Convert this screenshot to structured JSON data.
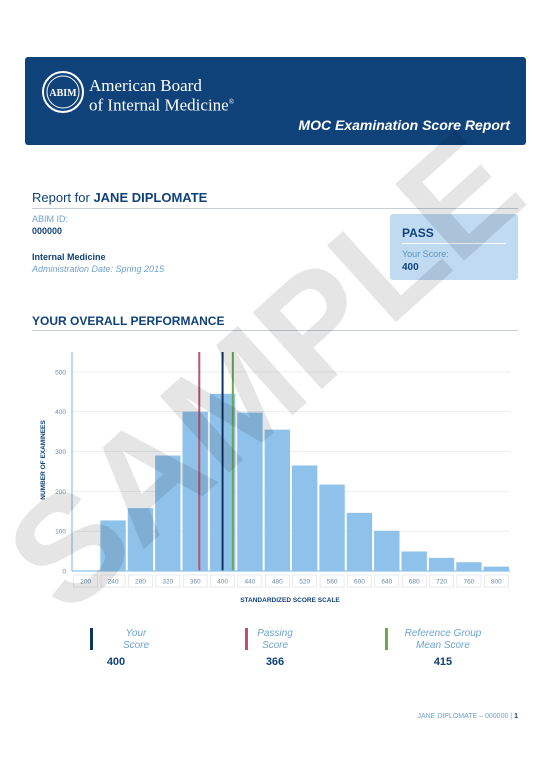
{
  "header": {
    "org_line1": "American Board",
    "org_line2": "of Internal Medicine",
    "org_mark": "®",
    "seal_text": "ABIM",
    "report_title": "MOC Examination Score Report"
  },
  "report": {
    "report_for_label": "Report for",
    "name": "JANE DIPLOMATE",
    "id_label": "ABIM ID:",
    "id_value": "000000",
    "specialty": "Internal Medicine",
    "admin_date": "Administration Date: Spring 2015"
  },
  "result": {
    "status": "PASS",
    "score_label": "Your Score:",
    "score_value": "400"
  },
  "section": {
    "title": "YOUR OVERALL PERFORMANCE"
  },
  "chart_data": {
    "type": "bar",
    "xlabel": "STANDARDIZED SCORE SCALE",
    "ylabel": "NUMBER OF EXAMINEES",
    "x_ticks": [
      200,
      240,
      280,
      320,
      360,
      400,
      440,
      480,
      520,
      560,
      600,
      640,
      680,
      720,
      760,
      800
    ],
    "y_ticks": [
      0,
      100,
      200,
      300,
      400,
      500
    ],
    "ylim": [
      0,
      550
    ],
    "xlim": [
      180,
      820
    ],
    "bin_width": 40,
    "bins": [
      {
        "start": 180,
        "value": 0
      },
      {
        "start": 220,
        "value": 127
      },
      {
        "start": 260,
        "value": 158
      },
      {
        "start": 300,
        "value": 290
      },
      {
        "start": 340,
        "value": 400
      },
      {
        "start": 380,
        "value": 445
      },
      {
        "start": 420,
        "value": 398
      },
      {
        "start": 460,
        "value": 355
      },
      {
        "start": 500,
        "value": 265
      },
      {
        "start": 540,
        "value": 217
      },
      {
        "start": 580,
        "value": 146
      },
      {
        "start": 620,
        "value": 101
      },
      {
        "start": 660,
        "value": 49
      },
      {
        "start": 700,
        "value": 33
      },
      {
        "start": 740,
        "value": 22
      },
      {
        "start": 780,
        "value": 11
      }
    ],
    "markers": [
      {
        "label": "Your Score",
        "value": 400,
        "color": "#10355f"
      },
      {
        "label": "Passing Score",
        "value": 366,
        "color": "#b7546f"
      },
      {
        "label": "Reference Group Mean Score",
        "value": 415,
        "color": "#6aaa4c"
      }
    ],
    "bar_color": "#8ec2ea",
    "grid": true
  },
  "legend": {
    "your_line1": "Your",
    "your_line2": "Score",
    "your_value": "400",
    "pass_line1": "Passing",
    "pass_line2": "Score",
    "pass_value": "366",
    "ref_line1": "Reference Group",
    "ref_line2": "Mean Score",
    "ref_value": "415"
  },
  "footer": {
    "text": "JANE DIPLOMATE – 000000 |",
    "page": "1"
  },
  "watermark": "SAMPLE"
}
